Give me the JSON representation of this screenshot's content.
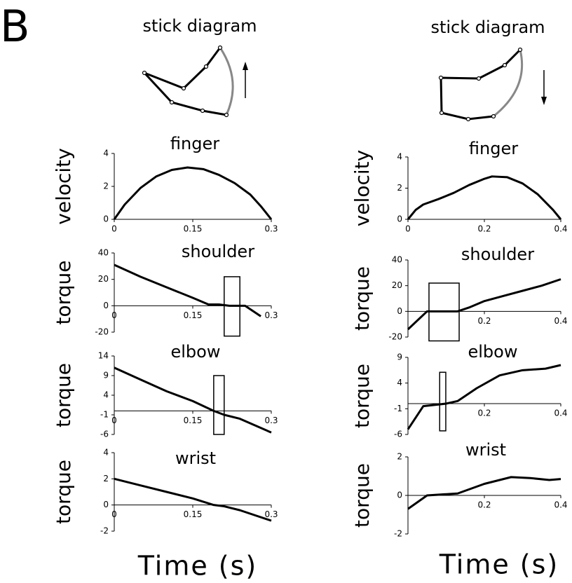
{
  "panel_label": "B",
  "columns": [
    {
      "title": "stick diagram",
      "x_label": "Time (s)"
    },
    {
      "title": "stick diagram",
      "x_label": "Time (s)"
    }
  ],
  "chart_data": [
    {
      "type": "line",
      "title": "finger",
      "y_label": "velocity",
      "color": "#000000",
      "x": [
        0,
        0.02,
        0.05,
        0.08,
        0.11,
        0.14,
        0.17,
        0.2,
        0.23,
        0.26,
        0.28,
        0.3
      ],
      "values": [
        0,
        0.9,
        1.9,
        2.6,
        3.0,
        3.15,
        3.05,
        2.7,
        2.2,
        1.5,
        0.8,
        0
      ],
      "xlim": [
        0,
        0.3
      ],
      "ylim": [
        0,
        4
      ],
      "xticks": [
        0,
        0.15,
        0.3
      ],
      "yticks": [
        0,
        2,
        4
      ]
    },
    {
      "type": "line",
      "title": "shoulder",
      "y_label": "torque",
      "color": "#000000",
      "x": [
        0,
        0.05,
        0.1,
        0.15,
        0.18,
        0.2,
        0.22,
        0.25,
        0.28
      ],
      "values": [
        31,
        22,
        14,
        6,
        1,
        1,
        0,
        0,
        -8
      ],
      "xlim": [
        0,
        0.3
      ],
      "ylim": [
        -20,
        40
      ],
      "xticks": [
        0,
        0.15,
        0.3
      ],
      "yticks": [
        -20,
        0,
        20,
        40
      ],
      "box": {
        "x": [
          0.21,
          0.24
        ],
        "y": [
          -23,
          22
        ]
      }
    },
    {
      "type": "line",
      "title": "elbow",
      "y_label": "torque",
      "color": "#000000",
      "x": [
        0,
        0.05,
        0.1,
        0.15,
        0.19,
        0.21,
        0.24,
        0.3
      ],
      "values": [
        11,
        8,
        5,
        2.5,
        0,
        -1,
        -2,
        -5.5
      ],
      "xlim": [
        0,
        0.3
      ],
      "ylim": [
        -6,
        14
      ],
      "xticks": [
        0,
        0.15,
        0.3
      ],
      "yticks": [
        -6,
        -1,
        4,
        9,
        14
      ],
      "box": {
        "x": [
          0.19,
          0.21
        ],
        "y": [
          -6,
          9
        ]
      }
    },
    {
      "type": "line",
      "title": "wrist",
      "y_label": "torque",
      "color": "#000000",
      "x": [
        0,
        0.05,
        0.1,
        0.15,
        0.19,
        0.21,
        0.24,
        0.3
      ],
      "values": [
        2,
        1.5,
        1,
        0.5,
        0,
        -0.1,
        -0.4,
        -1.2
      ],
      "xlim": [
        0,
        0.3
      ],
      "ylim": [
        -2,
        4
      ],
      "xticks": [
        0,
        0.15,
        0.3
      ],
      "yticks": [
        -2,
        0,
        2,
        4
      ]
    },
    {
      "type": "line",
      "title": "finger",
      "y_label": "velocity",
      "color": "#000000",
      "x": [
        0,
        0.02,
        0.04,
        0.08,
        0.12,
        0.16,
        0.2,
        0.22,
        0.26,
        0.3,
        0.34,
        0.38,
        0.4
      ],
      "values": [
        0,
        0.6,
        0.95,
        1.3,
        1.7,
        2.2,
        2.6,
        2.75,
        2.7,
        2.3,
        1.6,
        0.6,
        0
      ],
      "xlim": [
        0,
        0.4
      ],
      "ylim": [
        0,
        4
      ],
      "xticks": [
        0,
        0.2,
        0.4
      ],
      "yticks": [
        0,
        2,
        4
      ]
    },
    {
      "type": "line",
      "title": "shoulder",
      "y_label": "torque",
      "color": "#000000",
      "x": [
        0,
        0.05,
        0.13,
        0.16,
        0.2,
        0.25,
        0.3,
        0.35,
        0.4
      ],
      "values": [
        -14,
        0,
        0,
        3,
        8,
        12,
        16,
        20,
        25
      ],
      "xlim": [
        0,
        0.4
      ],
      "ylim": [
        -20,
        40
      ],
      "xticks": [
        0.2,
        0.4
      ],
      "yticks": [
        -20,
        0,
        20,
        40
      ],
      "box": {
        "x": [
          0.055,
          0.134
        ],
        "y": [
          -23,
          22
        ]
      }
    },
    {
      "type": "line",
      "title": "elbow",
      "y_label": "torque",
      "color": "#000000",
      "x": [
        0,
        0.04,
        0.1,
        0.13,
        0.18,
        0.24,
        0.3,
        0.36,
        0.4
      ],
      "values": [
        -5,
        -0.5,
        0,
        0.5,
        3,
        5.5,
        6.5,
        6.8,
        7.5
      ],
      "xlim": [
        0,
        0.4
      ],
      "ylim": [
        -6,
        9
      ],
      "xticks": [
        0.2,
        0.4
      ],
      "yticks": [
        -6,
        -1,
        4,
        9
      ],
      "box": {
        "x": [
          0.083,
          0.099
        ],
        "y": [
          -5.3,
          6.1
        ]
      }
    },
    {
      "type": "line",
      "title": "wrist",
      "y_label": "torque",
      "color": "#000000",
      "x": [
        0,
        0.05,
        0.13,
        0.2,
        0.27,
        0.32,
        0.37,
        0.4
      ],
      "values": [
        -0.7,
        0,
        0.1,
        0.6,
        0.95,
        0.9,
        0.8,
        0.85
      ],
      "xlim": [
        0,
        0.4
      ],
      "ylim": [
        -2,
        2
      ],
      "xticks": [
        0.2,
        0.4
      ],
      "yticks": [
        -2,
        0,
        2
      ]
    }
  ]
}
